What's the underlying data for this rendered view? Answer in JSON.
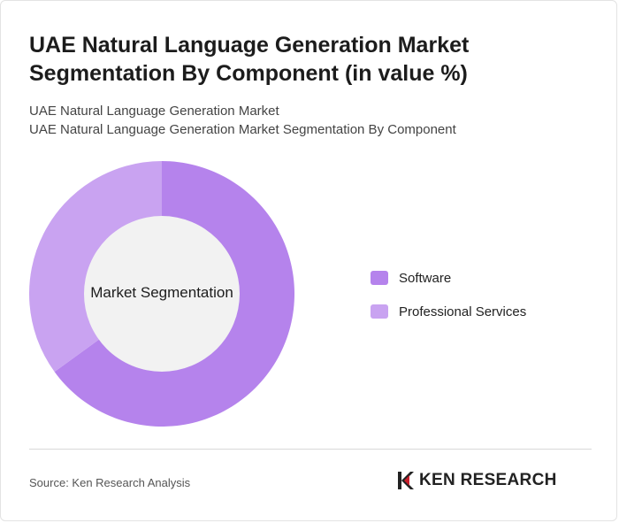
{
  "chart_data": {
    "type": "pie",
    "title": "UAE Natural Language Generation Market Segmentation By Component (in value %)",
    "subtitle_lines": [
      "UAE Natural Language Generation Market",
      "UAE Natural Language Generation Market Segmentation By Component"
    ],
    "center_label": "Market Segmentation",
    "categories": [
      "Software",
      "Professional Services"
    ],
    "values": [
      65,
      35
    ],
    "colors": [
      "#b583ec",
      "#c9a3f1"
    ],
    "legend_position": "right"
  },
  "footer": {
    "source": "Source: Ken Research Analysis",
    "logo_text": "KEN RESEARCH"
  },
  "colors": {
    "donut_hole": "#f2f2f2",
    "logo_mark": "#c81e2b"
  }
}
